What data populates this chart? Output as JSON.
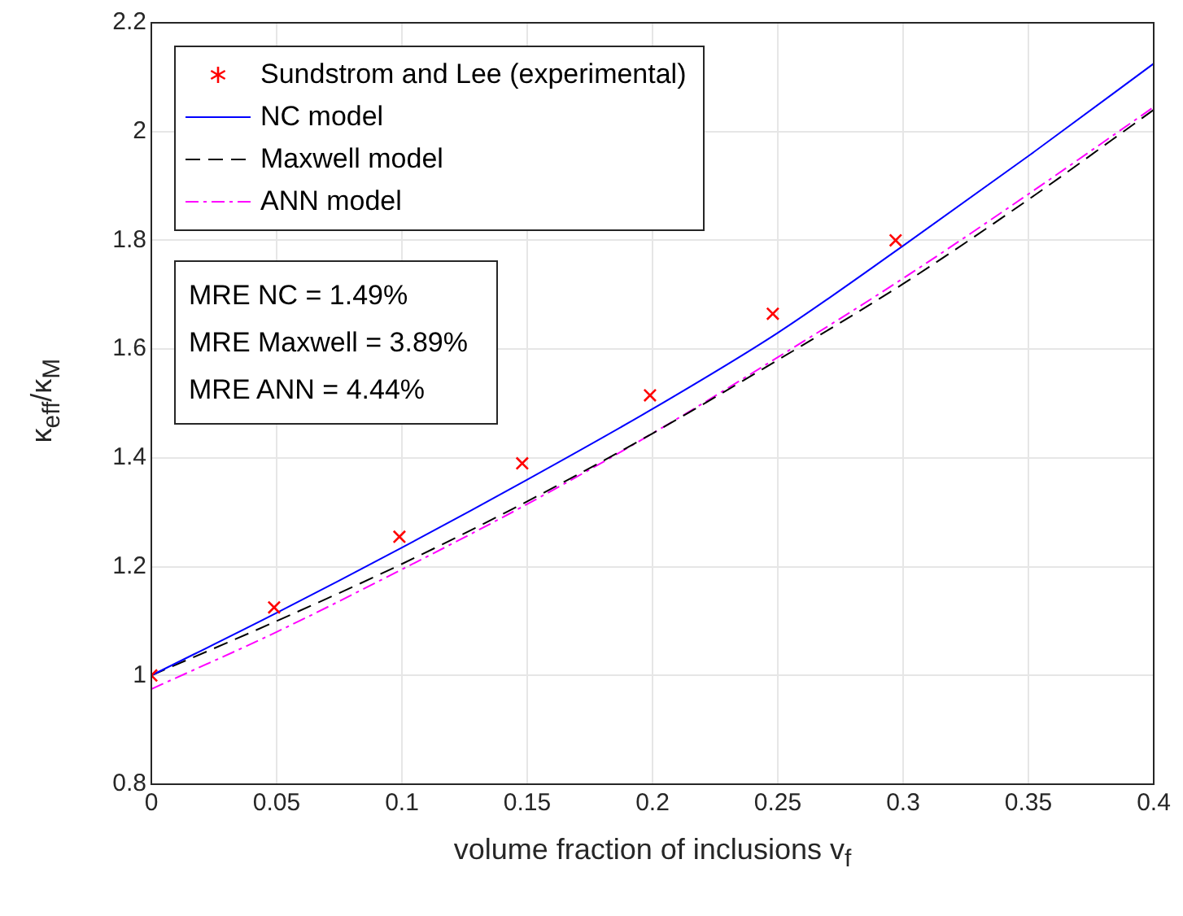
{
  "chart_data": {
    "type": "line",
    "xlabel": "volume fraction of inclusions v$_{f}$",
    "ylabel": "κ$_{eff}$/κ$_{M}$",
    "xlim": [
      0,
      0.4
    ],
    "xticks": [
      0,
      0.05,
      0.1,
      0.15,
      0.2,
      0.25,
      0.3,
      0.35,
      0.4
    ],
    "ylim": [
      0.8,
      2.2
    ],
    "yticks": [
      0.8,
      1,
      1.2,
      1.4,
      1.6,
      1.8,
      2,
      2.2
    ],
    "grid": true,
    "legend": "top left",
    "annotations": [
      "MRE NC = 1.49%",
      "MRE Maxwell = 3.89%",
      "MRE ANN = 4.44%"
    ],
    "series": [
      {
        "name": "Sundstrom and Lee (experimental)",
        "type": "scatter",
        "marker": "cross",
        "color": "#ff0000",
        "x": [
          0,
          0.049,
          0.099,
          0.148,
          0.199,
          0.248,
          0.297
        ],
        "values": [
          1.0,
          1.125,
          1.255,
          1.39,
          1.515,
          1.665,
          1.8
        ]
      },
      {
        "name": "NC model",
        "line_style": "solid",
        "color": "#0000ff",
        "x": [
          0,
          0.05,
          0.1,
          0.15,
          0.2,
          0.25,
          0.3,
          0.35,
          0.4
        ],
        "values": [
          1,
          1.115,
          1.235,
          1.36,
          1.49,
          1.63,
          1.79,
          1.955,
          2.125
        ]
      },
      {
        "name": "Maxwell model",
        "line_style": "dashed",
        "color": "#000000",
        "x": [
          0,
          0.05,
          0.1,
          0.15,
          0.2,
          0.25,
          0.3,
          0.35,
          0.4
        ],
        "values": [
          1,
          1.1,
          1.205,
          1.32,
          1.445,
          1.58,
          1.72,
          1.875,
          2.04
        ]
      },
      {
        "name": "ANN model",
        "line_style": "dashdot",
        "color": "#ff00ff",
        "x": [
          0,
          0.05,
          0.1,
          0.15,
          0.2,
          0.25,
          0.3,
          0.35,
          0.4
        ],
        "values": [
          0.975,
          1.08,
          1.195,
          1.315,
          1.445,
          1.585,
          1.73,
          1.885,
          2.045
        ]
      }
    ]
  }
}
